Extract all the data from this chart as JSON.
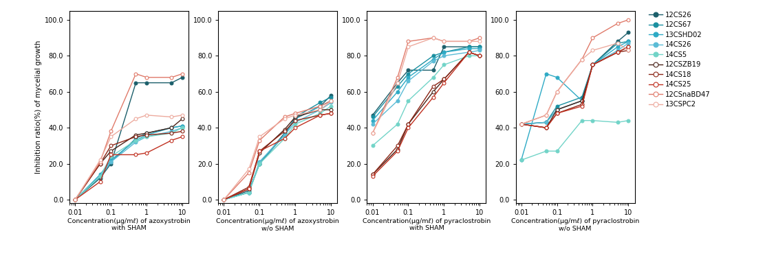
{
  "x": [
    0.01,
    0.05,
    0.1,
    0.5,
    1,
    5,
    10
  ],
  "series": [
    {
      "name": "12CS26",
      "color": "#1c5f6b",
      "filled": true,
      "A": [
        0,
        12,
        20,
        65,
        65,
        65,
        68
      ],
      "B": [
        0,
        5,
        20,
        37,
        45,
        52,
        58
      ],
      "C": [
        47,
        65,
        72,
        72,
        85,
        85,
        85
      ],
      "D": [
        42,
        43,
        50,
        55,
        75,
        88,
        93
      ]
    },
    {
      "name": "12CS67",
      "color": "#1a8fa0",
      "filled": true,
      "A": [
        0,
        13,
        21,
        34,
        37,
        40,
        41
      ],
      "B": [
        0,
        4,
        20,
        36,
        46,
        54,
        57
      ],
      "C": [
        46,
        63,
        70,
        80,
        82,
        85,
        85
      ],
      "D": [
        42,
        43,
        52,
        57,
        75,
        87,
        88
      ]
    },
    {
      "name": "13CSHD02",
      "color": "#2eaac5",
      "filled": true,
      "A": [
        0,
        14,
        22,
        33,
        36,
        40,
        41
      ],
      "B": [
        0,
        4,
        21,
        36,
        45,
        52,
        55
      ],
      "C": [
        44,
        60,
        68,
        78,
        82,
        84,
        84
      ],
      "D": [
        22,
        70,
        68,
        55,
        75,
        85,
        88
      ]
    },
    {
      "name": "14CS26",
      "color": "#5bbcd6",
      "filled": true,
      "A": [
        0,
        13,
        21,
        32,
        35,
        38,
        40
      ],
      "B": [
        0,
        4,
        21,
        36,
        43,
        50,
        54
      ],
      "C": [
        42,
        55,
        66,
        77,
        80,
        82,
        83
      ],
      "D": [
        42,
        43,
        50,
        55,
        75,
        83,
        87
      ]
    },
    {
      "name": "14CS5",
      "color": "#72d4c8",
      "filled": true,
      "A": [
        0,
        13,
        24,
        33,
        35,
        37,
        40
      ],
      "B": [
        0,
        4,
        20,
        34,
        42,
        48,
        52
      ],
      "C": [
        30,
        42,
        55,
        68,
        75,
        80,
        80
      ],
      "D": [
        22,
        27,
        27,
        44,
        44,
        43,
        44
      ]
    },
    {
      "name": "12CSZB19",
      "color": "#4a2218",
      "filled": false,
      "A": [
        0,
        20,
        27,
        36,
        37,
        40,
        45
      ],
      "B": [
        0,
        6,
        26,
        39,
        46,
        50,
        50
      ],
      "C": [
        14,
        28,
        42,
        60,
        67,
        82,
        80
      ],
      "D": [
        42,
        40,
        50,
        55,
        75,
        82,
        85
      ]
    },
    {
      "name": "14CS18",
      "color": "#8b2515",
      "filled": false,
      "A": [
        0,
        20,
        30,
        35,
        36,
        37,
        38
      ],
      "B": [
        0,
        7,
        27,
        38,
        44,
        47,
        48
      ],
      "C": [
        14,
        30,
        42,
        63,
        67,
        82,
        80
      ],
      "D": [
        42,
        40,
        48,
        53,
        75,
        82,
        83
      ]
    },
    {
      "name": "14CS25",
      "color": "#c03020",
      "filled": false,
      "A": [
        0,
        10,
        25,
        25,
        26,
        33,
        35
      ],
      "B": [
        0,
        6,
        27,
        34,
        40,
        47,
        48
      ],
      "C": [
        13,
        27,
        40,
        57,
        65,
        82,
        80
      ],
      "D": [
        42,
        40,
        48,
        52,
        75,
        82,
        85
      ]
    },
    {
      "name": "12CSnaBD47",
      "color": "#e07a6a",
      "filled": false,
      "A": [
        0,
        21,
        38,
        70,
        68,
        68,
        70
      ],
      "B": [
        0,
        15,
        33,
        46,
        48,
        52,
        55
      ],
      "C": [
        37,
        68,
        88,
        90,
        88,
        88,
        90
      ],
      "D": [
        42,
        47,
        60,
        78,
        90,
        98,
        100
      ]
    },
    {
      "name": "13CSPC2",
      "color": "#edaa9e",
      "filled": false,
      "A": [
        0,
        22,
        35,
        45,
        47,
        46,
        47
      ],
      "B": [
        0,
        17,
        35,
        45,
        47,
        50,
        55
      ],
      "C": [
        37,
        65,
        85,
        90,
        88,
        88,
        88
      ],
      "D": [
        42,
        47,
        60,
        78,
        83,
        87,
        83
      ]
    }
  ],
  "xlim": [
    0.007,
    15
  ],
  "ylim": [
    -2,
    105
  ],
  "yticks": [
    0.0,
    20.0,
    40.0,
    60.0,
    80.0,
    100.0
  ],
  "xticks": [
    0.01,
    0.1,
    1,
    10
  ],
  "xlabels": [
    "Concentration(μg/mℓ) of azoxystrobin\nwith SHAM",
    "Concentration(μg/mℓ) of azoxystrobin\nw/o SHAM",
    "Concentration(μg/mℓ) of pyraclostrobin\nwith SHAM",
    "Concentration(μg/mℓ) of pyraclostrobin\nw/o SHAM"
  ],
  "ylabel": "Inhibition ratio(%) of mycelial growth",
  "panel_keys": [
    "A",
    "B",
    "C",
    "D"
  ]
}
